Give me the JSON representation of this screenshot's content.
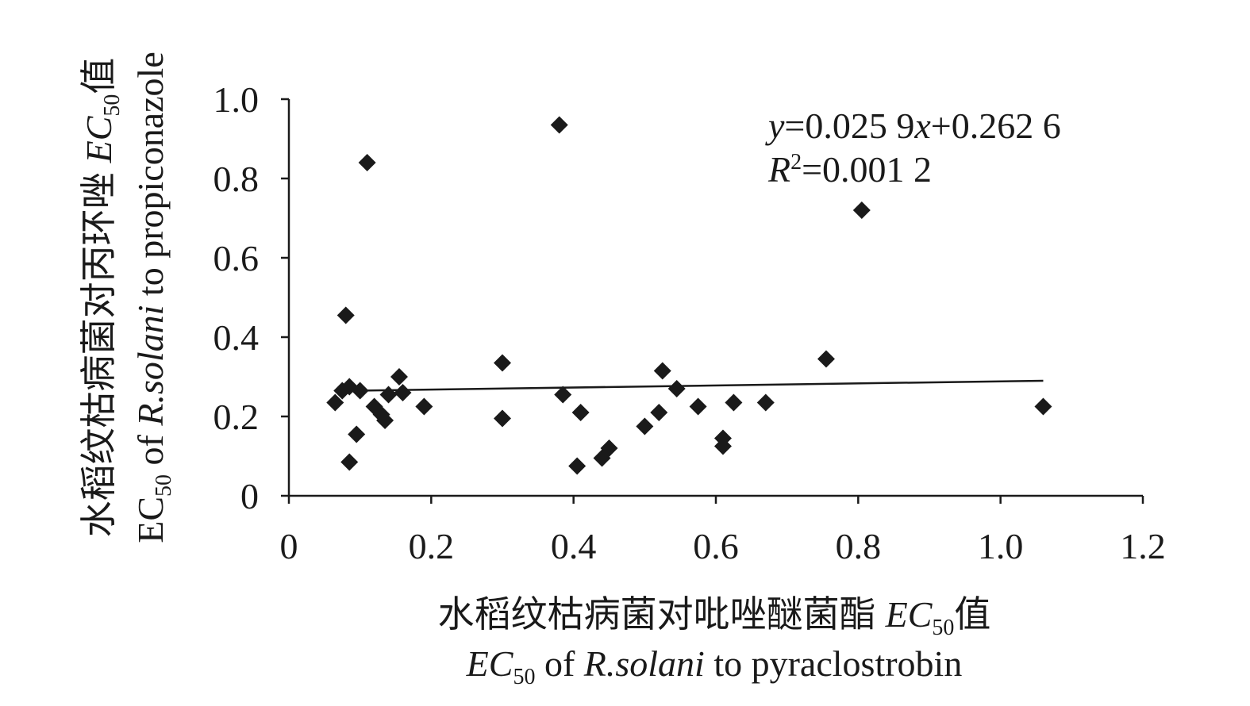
{
  "chart_data": {
    "type": "scatter",
    "xlabel": {
      "line1_cn": "水稻纹枯病菌对吡唑醚菌酯",
      "line1_em": "EC",
      "line1_sub": "50",
      "line1_tail": "值",
      "line2_em": "EC",
      "line2_sub": "50",
      "line2_mid": " of ",
      "line2_italic": "R.solani",
      "line2_tail": " to pyraclostrobin"
    },
    "ylabel": {
      "line1_cn": "水稻纹枯病菌对丙环唑",
      "line1_em": "EC",
      "line1_sub": "50",
      "line1_tail": "值",
      "line2_em": "EC",
      "line2_sub": "50",
      "line2_mid": " of ",
      "line2_italic": "R.solani",
      "line2_tail": " to propiconazole"
    },
    "xlim": [
      0,
      1.2
    ],
    "ylim": [
      0,
      1.0
    ],
    "x_ticks": [
      "0",
      "0.2",
      "0.4",
      "0.6",
      "0.8",
      "1.0",
      "1.2"
    ],
    "y_ticks": [
      "0",
      "0.2",
      "0.4",
      "0.6",
      "0.8",
      "1.0"
    ],
    "grid": false,
    "legend": false,
    "marker": "diamond",
    "marker_color": "#1a1a1a",
    "points": [
      {
        "x": 0.065,
        "y": 0.235
      },
      {
        "x": 0.075,
        "y": 0.265
      },
      {
        "x": 0.08,
        "y": 0.455
      },
      {
        "x": 0.085,
        "y": 0.275
      },
      {
        "x": 0.085,
        "y": 0.085
      },
      {
        "x": 0.095,
        "y": 0.155
      },
      {
        "x": 0.1,
        "y": 0.265
      },
      {
        "x": 0.11,
        "y": 0.84
      },
      {
        "x": 0.12,
        "y": 0.225
      },
      {
        "x": 0.13,
        "y": 0.205
      },
      {
        "x": 0.135,
        "y": 0.19
      },
      {
        "x": 0.14,
        "y": 0.255
      },
      {
        "x": 0.155,
        "y": 0.3
      },
      {
        "x": 0.16,
        "y": 0.26
      },
      {
        "x": 0.19,
        "y": 0.225
      },
      {
        "x": 0.3,
        "y": 0.335
      },
      {
        "x": 0.3,
        "y": 0.195
      },
      {
        "x": 0.38,
        "y": 0.935
      },
      {
        "x": 0.385,
        "y": 0.255
      },
      {
        "x": 0.405,
        "y": 0.075
      },
      {
        "x": 0.41,
        "y": 0.21
      },
      {
        "x": 0.44,
        "y": 0.095
      },
      {
        "x": 0.45,
        "y": 0.12
      },
      {
        "x": 0.5,
        "y": 0.175
      },
      {
        "x": 0.52,
        "y": 0.21
      },
      {
        "x": 0.525,
        "y": 0.315
      },
      {
        "x": 0.545,
        "y": 0.27
      },
      {
        "x": 0.575,
        "y": 0.225
      },
      {
        "x": 0.61,
        "y": 0.145
      },
      {
        "x": 0.61,
        "y": 0.125
      },
      {
        "x": 0.625,
        "y": 0.235
      },
      {
        "x": 0.67,
        "y": 0.235
      },
      {
        "x": 0.755,
        "y": 0.345
      },
      {
        "x": 0.805,
        "y": 0.72
      },
      {
        "x": 1.06,
        "y": 0.225
      }
    ],
    "trendline": {
      "slope": 0.0259,
      "intercept": 0.2626,
      "x_start": 0.065,
      "x_end": 1.06
    },
    "equation": {
      "y_var": "y",
      "eq_part1": "=0.025 9",
      "x_var": "x",
      "eq_part2": "+0.262 6",
      "r_var": "R",
      "r_sup": "2",
      "r_value": "=0.001 2"
    }
  }
}
